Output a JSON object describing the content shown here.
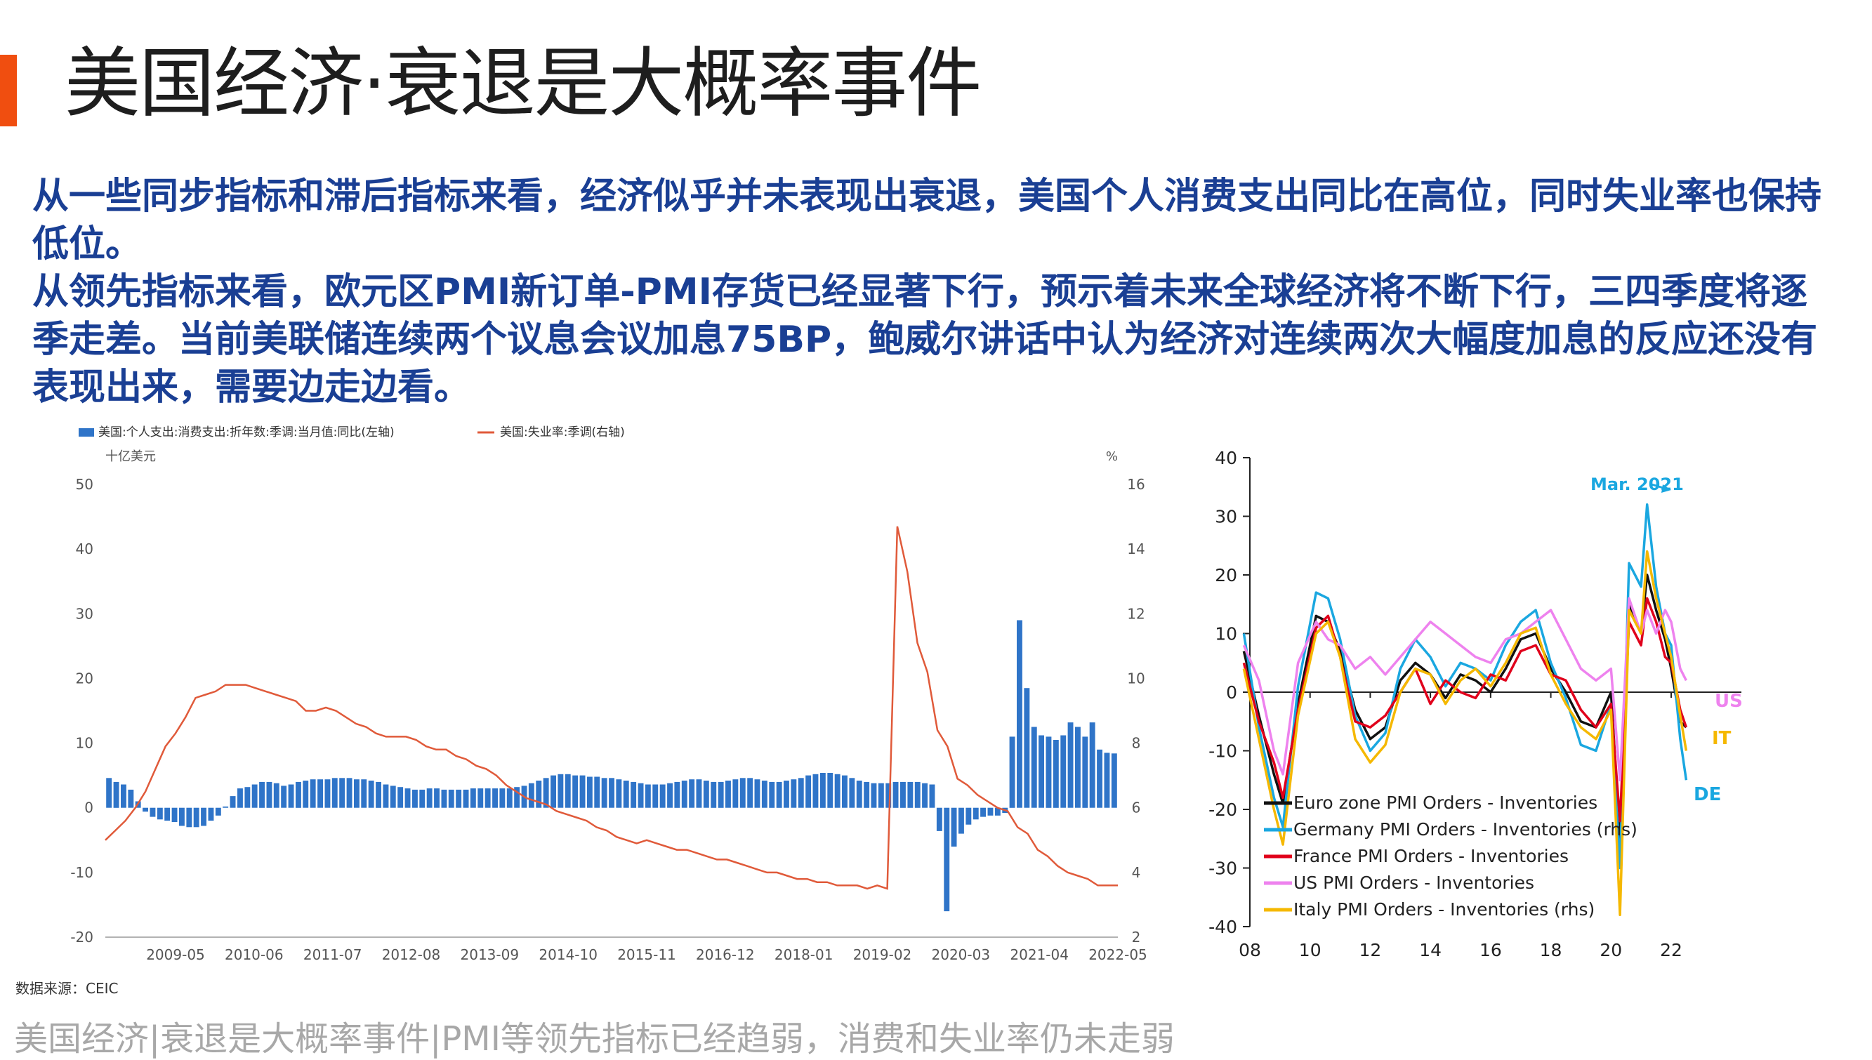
{
  "slide": {
    "title": "美国经济·衰退是大概率事件",
    "paragraph1": "从一些同步指标和滞后指标来看，经济似乎并未表现出衰退，美国个人消费支出同比在高位，同时失业率也保持低位。",
    "paragraph2": "从领先指标来看，欧元区PMI新订单-PMI存货已经显著下行，预示着未来全球经济将不断下行，三四季度将逐季走差。当前美联储连续两个议息会议加息75BP，鲍威尔讲话中认为经济对连续两次大幅度加息的反应还没有表现出来，需要边走边看。",
    "source": "数据来源：CEIC",
    "footer": "美国经济|衰退是大概率事件|PMI等领先指标已经趋弱，消费和失业率仍未走弱",
    "colors": {
      "accent": "#f04e10",
      "text_blue": "#1a3f94",
      "bar_blue": "#2f74c8",
      "line_red": "#e05a3a"
    }
  },
  "chart_data": [
    {
      "type": "bar+line",
      "legend": [
        "美国:个人支出:消费支出:折年数:季调:当月值:同比(左轴)",
        "美国:失业率:季调(右轴)"
      ],
      "left_unit": "十亿美元",
      "right_unit": "%",
      "ylim_left": [
        -20,
        50
      ],
      "ylim_right": [
        2,
        16
      ],
      "yticks_left": [
        "50",
        "40",
        "30",
        "20",
        "10",
        "0",
        "-10",
        "-20"
      ],
      "yticks_right": [
        "16",
        "14",
        "12",
        "10",
        "8",
        "6",
        "4",
        "2"
      ],
      "x_tick_labels": [
        "2009-05",
        "2010-06",
        "2011-07",
        "2012-08",
        "2013-09",
        "2014-10",
        "2015-11",
        "2016-12",
        "2018-01",
        "2019-02",
        "2020-03",
        "2021-04",
        "2022-05"
      ],
      "x_start": "2008-01",
      "x_end": "2022-05",
      "series": [
        {
          "name": "美国:个人支出:消费支出:折年数:季调:当月值:同比(左轴)",
          "kind": "bar",
          "axis": "left",
          "values": [
            4.6,
            4.0,
            3.6,
            2.8,
            1.0,
            -0.6,
            -1.4,
            -1.8,
            -2.0,
            -2.2,
            -2.8,
            -3.0,
            -3.0,
            -2.8,
            -2.0,
            -1.2,
            0.2,
            1.8,
            3.0,
            3.2,
            3.6,
            4.0,
            4.0,
            3.8,
            3.4,
            3.6,
            4.0,
            4.2,
            4.4,
            4.4,
            4.4,
            4.6,
            4.6,
            4.6,
            4.4,
            4.4,
            4.2,
            4.0,
            3.6,
            3.4,
            3.2,
            3.0,
            2.8,
            2.8,
            3.0,
            3.0,
            2.8,
            2.8,
            2.8,
            2.8,
            3.0,
            3.0,
            3.0,
            3.0,
            3.0,
            3.0,
            3.2,
            3.4,
            3.8,
            4.2,
            4.6,
            5.0,
            5.2,
            5.2,
            5.0,
            5.0,
            4.8,
            4.8,
            4.6,
            4.6,
            4.4,
            4.2,
            4.0,
            3.8,
            3.6,
            3.6,
            3.6,
            3.8,
            4.0,
            4.2,
            4.4,
            4.4,
            4.2,
            4.0,
            4.0,
            4.2,
            4.4,
            4.6,
            4.6,
            4.4,
            4.2,
            4.0,
            4.0,
            4.2,
            4.4,
            4.6,
            5.0,
            5.2,
            5.4,
            5.4,
            5.2,
            5.0,
            4.6,
            4.2,
            4.0,
            3.8,
            3.8,
            3.8,
            4.0,
            4.0,
            4.0,
            4.0,
            3.8,
            3.6,
            -3.6,
            -16.0,
            -6.0,
            -4.0,
            -2.6,
            -1.8,
            -1.4,
            -1.2,
            -1.2,
            -0.8,
            11.0,
            29.0,
            18.5,
            12.5,
            11.2,
            11.0,
            10.5,
            11.2,
            13.2,
            12.5,
            11.0,
            13.2,
            9.0,
            8.5,
            8.4
          ]
        },
        {
          "name": "美国:失业率:季调(右轴)",
          "kind": "line",
          "axis": "right",
          "values": [
            5.0,
            5.3,
            5.6,
            6.0,
            6.5,
            7.2,
            7.9,
            8.3,
            8.8,
            9.4,
            9.5,
            9.6,
            9.8,
            9.8,
            9.8,
            9.7,
            9.6,
            9.5,
            9.4,
            9.3,
            9.0,
            9.0,
            9.1,
            9.0,
            8.8,
            8.6,
            8.5,
            8.3,
            8.2,
            8.2,
            8.2,
            8.1,
            7.9,
            7.8,
            7.8,
            7.6,
            7.5,
            7.3,
            7.2,
            7.0,
            6.7,
            6.5,
            6.3,
            6.2,
            6.1,
            5.9,
            5.8,
            5.7,
            5.6,
            5.4,
            5.3,
            5.1,
            5.0,
            4.9,
            5.0,
            4.9,
            4.8,
            4.7,
            4.7,
            4.6,
            4.5,
            4.4,
            4.4,
            4.3,
            4.2,
            4.1,
            4.0,
            4.0,
            3.9,
            3.8,
            3.8,
            3.7,
            3.7,
            3.6,
            3.6,
            3.6,
            3.5,
            3.6,
            3.5,
            14.7,
            13.3,
            11.1,
            10.2,
            8.4,
            7.9,
            6.9,
            6.7,
            6.4,
            6.2,
            6.0,
            5.9,
            5.4,
            5.2,
            4.7,
            4.5,
            4.2,
            4.0,
            3.9,
            3.8,
            3.6,
            3.6,
            3.6
          ]
        }
      ]
    },
    {
      "type": "line",
      "x_tick_labels": [
        "08",
        "10",
        "12",
        "14",
        "16",
        "18",
        "20",
        "22"
      ],
      "ylim": [
        -40,
        40
      ],
      "yticks": [
        "40",
        "30",
        "20",
        "10",
        "0",
        "-10",
        "-20",
        "-30",
        "-40"
      ],
      "annotation": "Mar. 2021",
      "end_labels": [
        "US",
        "IT",
        "DE"
      ],
      "series": [
        {
          "name": "Euro zone PMI Orders - Inventories",
          "color": "#111111",
          "x": [
            2007.8,
            2008.3,
            2008.8,
            2009.1,
            2009.6,
            2010.2,
            2010.6,
            2011.0,
            2011.5,
            2012.0,
            2012.5,
            2013.0,
            2013.5,
            2014.0,
            2014.5,
            2015.0,
            2015.5,
            2016.0,
            2016.5,
            2017.0,
            2017.5,
            2018.0,
            2018.5,
            2019.0,
            2019.5,
            2020.0,
            2020.3,
            2020.6,
            2021.0,
            2021.2,
            2021.5,
            2021.8,
            2022.0,
            2022.3,
            2022.5
          ],
          "y": [
            7,
            -4,
            -14,
            -19,
            -2,
            13,
            12,
            7,
            -3,
            -8,
            -6,
            2,
            5,
            3,
            -1,
            3,
            2,
            0,
            4,
            9,
            10,
            4,
            0,
            -5,
            -6,
            0,
            -25,
            15,
            10,
            20,
            14,
            9,
            4,
            -5,
            -6
          ]
        },
        {
          "name": "Germany PMI Orders - Inventories (rhs)",
          "color": "#1aa7e0",
          "x": [
            2007.8,
            2008.3,
            2008.8,
            2009.1,
            2009.6,
            2010.2,
            2010.6,
            2011.0,
            2011.5,
            2012.0,
            2012.5,
            2013.0,
            2013.5,
            2014.0,
            2014.5,
            2015.0,
            2015.5,
            2016.0,
            2016.5,
            2017.0,
            2017.5,
            2018.0,
            2018.5,
            2019.0,
            2019.5,
            2020.0,
            2020.3,
            2020.6,
            2021.0,
            2021.2,
            2021.5,
            2021.8,
            2022.0,
            2022.3,
            2022.5
          ],
          "y": [
            10,
            -6,
            -18,
            -23,
            1,
            17,
            16,
            9,
            -4,
            -10,
            -7,
            4,
            9,
            6,
            1,
            5,
            4,
            2,
            8,
            12,
            14,
            5,
            -1,
            -9,
            -10,
            -2,
            -30,
            22,
            18,
            32,
            18,
            10,
            8,
            -8,
            -15
          ]
        },
        {
          "name": "France PMI Orders - Inventories",
          "color": "#e0001b",
          "x": [
            2007.8,
            2008.3,
            2008.8,
            2009.1,
            2009.6,
            2010.2,
            2010.6,
            2011.0,
            2011.5,
            2012.0,
            2012.5,
            2013.0,
            2013.5,
            2014.0,
            2014.5,
            2015.0,
            2015.5,
            2016.0,
            2016.5,
            2017.0,
            2017.5,
            2018.0,
            2018.5,
            2019.0,
            2019.5,
            2020.0,
            2020.3,
            2020.6,
            2021.0,
            2021.2,
            2021.5,
            2021.8,
            2022.0,
            2022.3,
            2022.5
          ],
          "y": [
            5,
            -5,
            -12,
            -18,
            -3,
            11,
            13,
            6,
            -5,
            -6,
            -4,
            0,
            4,
            -2,
            2,
            0,
            -1,
            3,
            2,
            7,
            8,
            3,
            2,
            -3,
            -6,
            -2,
            -22,
            12,
            8,
            16,
            12,
            6,
            5,
            -3,
            -6
          ]
        },
        {
          "name": "US PMI Orders - Inventories",
          "color": "#ee82ee",
          "x": [
            2007.8,
            2008.3,
            2008.8,
            2009.1,
            2009.6,
            2010.2,
            2010.6,
            2011.0,
            2011.5,
            2012.0,
            2012.5,
            2013.0,
            2013.5,
            2014.0,
            2014.5,
            2015.0,
            2015.5,
            2016.0,
            2016.5,
            2017.0,
            2017.5,
            2018.0,
            2018.5,
            2019.0,
            2019.5,
            2020.0,
            2020.3,
            2020.6,
            2021.0,
            2021.2,
            2021.5,
            2021.8,
            2022.0,
            2022.3,
            2022.5
          ],
          "y": [
            8,
            2,
            -10,
            -14,
            5,
            12,
            9,
            8,
            4,
            6,
            3,
            6,
            9,
            12,
            10,
            8,
            6,
            5,
            9,
            10,
            12,
            14,
            9,
            4,
            2,
            4,
            -15,
            16,
            10,
            14,
            10,
            14,
            12,
            4,
            2
          ]
        },
        {
          "name": "Italy PMI Orders - Inventories (rhs)",
          "color": "#f5b800",
          "x": [
            2007.8,
            2008.3,
            2008.8,
            2009.1,
            2009.6,
            2010.2,
            2010.6,
            2011.0,
            2011.5,
            2012.0,
            2012.5,
            2013.0,
            2013.5,
            2014.0,
            2014.5,
            2015.0,
            2015.5,
            2016.0,
            2016.5,
            2017.0,
            2017.5,
            2018.0,
            2018.5,
            2019.0,
            2019.5,
            2020.0,
            2020.3,
            2020.6,
            2021.0,
            2021.2,
            2021.5,
            2021.8,
            2022.0,
            2022.3,
            2022.5
          ],
          "y": [
            4,
            -8,
            -20,
            -26,
            -4,
            10,
            12,
            6,
            -8,
            -12,
            -9,
            0,
            4,
            3,
            -2,
            2,
            4,
            1,
            5,
            10,
            11,
            3,
            -2,
            -6,
            -8,
            -3,
            -38,
            14,
            10,
            24,
            16,
            10,
            6,
            -4,
            -10
          ]
        }
      ]
    }
  ]
}
